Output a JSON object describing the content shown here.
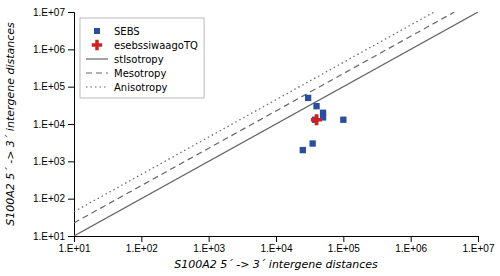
{
  "chart_data": {
    "type": "scatter",
    "log": true,
    "xlabel": "S100A2 5´ -> 3´ intergene distances",
    "ylabel": "S100A2 5´ -> 3´ intergene distances",
    "xlim": [
      10,
      10000000
    ],
    "ylim": [
      10,
      10000000
    ],
    "xticks": [
      {
        "value": 10,
        "label": "1.E+01"
      },
      {
        "value": 100,
        "label": "1.E+02"
      },
      {
        "value": 1000,
        "label": "1.E+03"
      },
      {
        "value": 10000,
        "label": "1.E+04"
      },
      {
        "value": 100000,
        "label": "1.E+05"
      },
      {
        "value": 1000000,
        "label": "1.E+06"
      },
      {
        "value": 10000000,
        "label": "1.E+07"
      }
    ],
    "yticks": [
      {
        "value": 10,
        "label": "1.E+01"
      },
      {
        "value": 100,
        "label": "1.E+02"
      },
      {
        "value": 1000,
        "label": "1.E+03"
      },
      {
        "value": 10000,
        "label": "1.E+04"
      },
      {
        "value": 100000,
        "label": "1.E+05"
      },
      {
        "value": 1000000,
        "label": "1.E+06"
      },
      {
        "value": 10000000,
        "label": "1.E+07"
      }
    ],
    "grid": false,
    "legend": "top-left",
    "series": [
      {
        "name": "SEBS",
        "type": "scatter",
        "marker": "square",
        "color": "#2a4d9e",
        "x": [
          30000,
          40000,
          50000,
          25000,
          35000,
          38000,
          50000,
          100000
        ],
        "y": [
          50000,
          30000,
          20000,
          2000,
          3000,
          13000,
          15000,
          13000
        ]
      },
      {
        "name": "esebssiwaagoTQ",
        "type": "scatter",
        "marker": "plus",
        "color": "#cc2222",
        "x": [
          40000
        ],
        "y": [
          13000
        ]
      },
      {
        "name": "stIsotropy",
        "type": "line",
        "line_style": "solid",
        "color": "#666666",
        "x": [
          10,
          10000000
        ],
        "y": [
          10,
          10000000
        ]
      },
      {
        "name": "Mesotropy",
        "type": "line",
        "line_style": "dashed",
        "color": "#666666",
        "x": [
          10,
          4466835.921509632
        ],
        "y": [
          22.387211385683393,
          10000000
        ]
      },
      {
        "name": "Anisotropy",
        "type": "line",
        "line_style": "dotted",
        "color": "#666666",
        "x": [
          10,
          2238721.1385683394
        ],
        "y": [
          44.66835921509632,
          10000000
        ]
      }
    ]
  }
}
